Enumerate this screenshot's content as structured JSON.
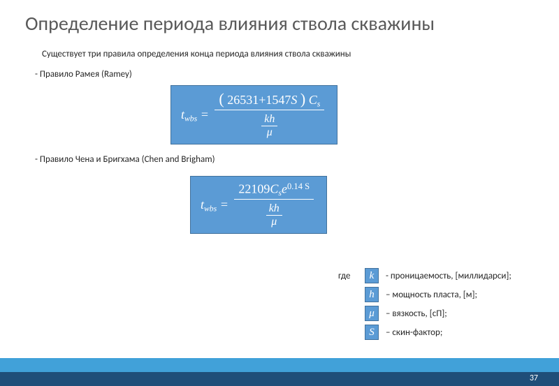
{
  "title": "Определение периода влияния ствола скважины",
  "intro": "Существует три правила определения конца периода влияния ствола скважины",
  "rule1": "- Правило Рамея (Ramey)",
  "rule2": "- Правило Чена и Бригхама (Chen and Brigham)",
  "formula1": {
    "lhs_sub": "wbs",
    "num_const": "26531",
    "num_plus": "+1547",
    "num_var": "S",
    "num_tail_sub": "s",
    "kh": "kh",
    "mu": "μ"
  },
  "formula2": {
    "lhs_sub": "wbs",
    "num_const": "22109",
    "num_cs_sub": "s",
    "num_exp": "0.14 S",
    "kh": "kh",
    "mu": "μ"
  },
  "legend_where": "где",
  "legend": [
    {
      "sym": "k",
      "desc": "- проницаемость, [миллидарси];"
    },
    {
      "sym": "h",
      "desc": "– мощность пласта, [м];"
    },
    {
      "sym": "μ",
      "desc": "– вязкость, [сП];"
    },
    {
      "sym": "S",
      "desc": "– скин-фактор;"
    }
  ],
  "page_number": "37",
  "colors": {
    "box_fill": "#5b9bd5",
    "box_border": "#41719c",
    "title_color": "#595959",
    "footer_light": "#41a1d9",
    "footer_dark": "#1f4e79"
  }
}
